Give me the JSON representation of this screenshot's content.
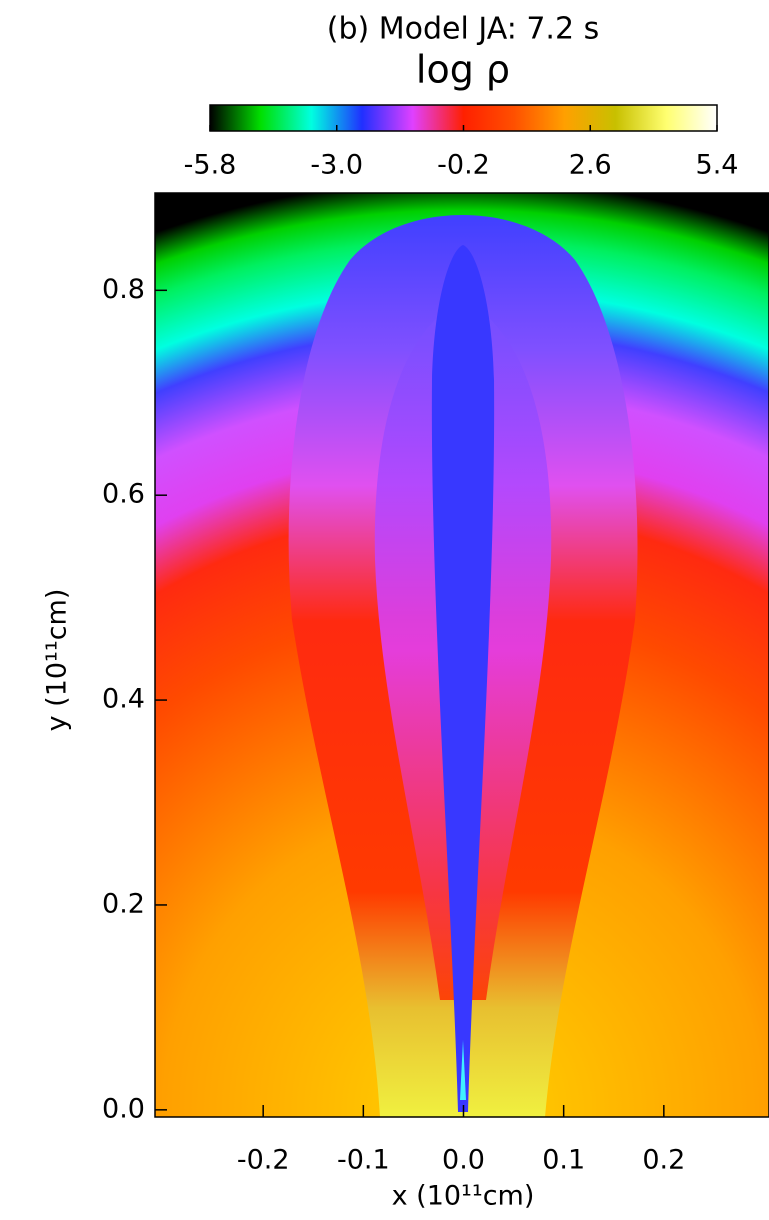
{
  "chart_data": {
    "type": "heatmap",
    "title": "(b) Model JA: 7.2 s",
    "colorbar_label": "log ρ",
    "x_label": "x (10¹¹cm)",
    "y_label": "y (10¹¹cm)",
    "xlim": [
      -0.308,
      0.305
    ],
    "ylim": [
      -0.007,
      0.895
    ],
    "xticks": [
      -0.2,
      -0.1,
      {
        "value": 0,
        "label": "0.0"
      },
      0.1,
      0.2
    ],
    "yticks": [
      {
        "value": 0,
        "label": "0.0"
      },
      0.2,
      0.4,
      0.6,
      0.8
    ],
    "clim": [
      -5.8,
      5.4
    ],
    "cticks": [
      -5.8,
      {
        "value": -3,
        "label": "-3.0"
      },
      -0.2,
      2.6,
      5.4
    ],
    "colormap": [
      "#000000",
      "#00e000",
      "#00ffe0",
      "#2030ff",
      "#e040ff",
      "#ff2000",
      "#ff5000",
      "#ffa000",
      "#c8c000",
      "#ffff70",
      "#ffffff"
    ]
  }
}
